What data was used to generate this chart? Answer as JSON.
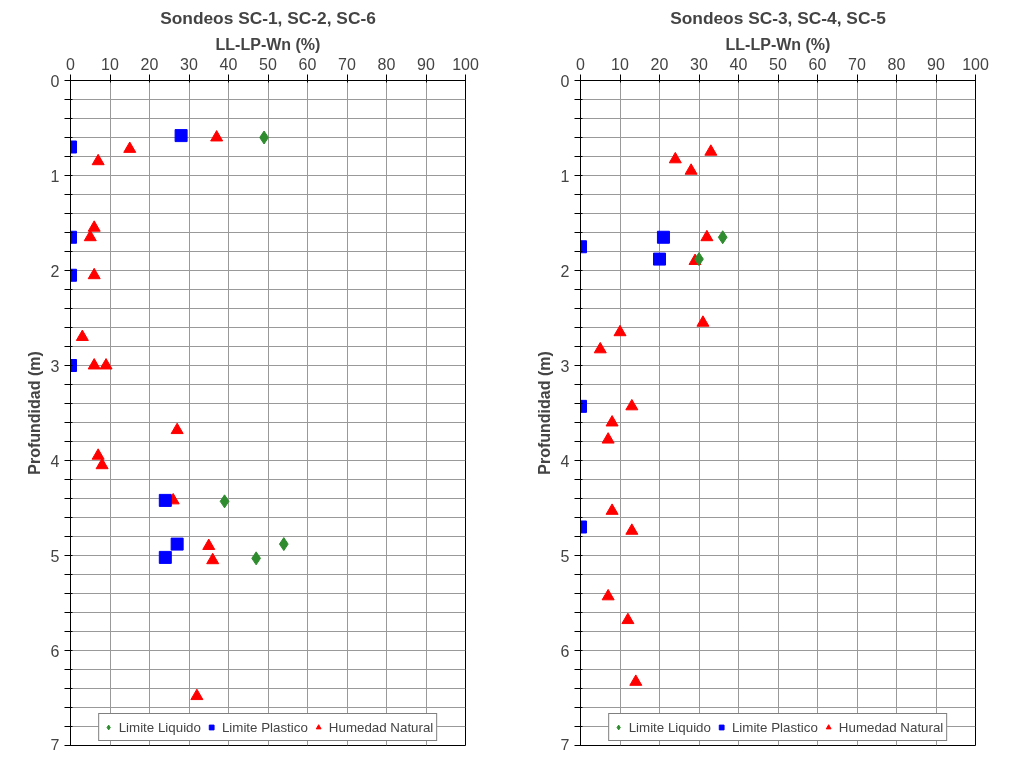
{
  "chart_data": [
    {
      "type": "scatter",
      "title": "Sondeos SC-1, SC-2, SC-6",
      "xlabel": "LL-LP-Wn (%)",
      "ylabel": "Profundidad (m)",
      "xlim": [
        0,
        100
      ],
      "xticks": [
        0,
        10,
        20,
        30,
        40,
        50,
        60,
        70,
        80,
        90,
        100
      ],
      "ylim": [
        7,
        0
      ],
      "yticks": [
        0,
        {
          "value": 0.2,
          "label": null
        },
        {
          "value": 0.4,
          "label": null
        },
        {
          "value": 0.6,
          "label": null
        },
        {
          "value": 0.8,
          "label": null
        },
        1,
        {
          "value": 1.2,
          "label": null
        },
        {
          "value": 1.4,
          "label": null
        },
        {
          "value": 1.6,
          "label": null
        },
        {
          "value": 1.8,
          "label": null
        },
        2,
        {
          "value": 2.2,
          "label": null
        },
        {
          "value": 2.4,
          "label": null
        },
        {
          "value": 2.6,
          "label": null
        },
        {
          "value": 2.8,
          "label": null
        },
        3,
        {
          "value": 3.2,
          "label": null
        },
        {
          "value": 3.4,
          "label": null
        },
        {
          "value": 3.6,
          "label": null
        },
        {
          "value": 3.8,
          "label": null
        },
        4,
        {
          "value": 4.2,
          "label": null
        },
        {
          "value": 4.4,
          "label": null
        },
        {
          "value": 4.6,
          "label": null
        },
        {
          "value": 4.8,
          "label": null
        },
        5,
        {
          "value": 5.2,
          "label": null
        },
        {
          "value": 5.4,
          "label": null
        },
        {
          "value": 5.6,
          "label": null
        },
        {
          "value": 5.8,
          "label": null
        },
        6,
        {
          "value": 6.2,
          "label": null
        },
        {
          "value": 6.4,
          "label": null
        },
        {
          "value": 6.6,
          "label": null
        },
        {
          "value": 6.8,
          "label": null
        },
        7
      ],
      "grid": true,
      "legend": "bottom",
      "series": [
        {
          "name": "Limite Liquido",
          "color": "#2e8b2e",
          "marker": "diamond",
          "x": [
            49,
            39,
            54,
            47
          ],
          "values": [
            0.6,
            4.43,
            4.88,
            5.03
          ]
        },
        {
          "name": "Limite Plastico",
          "color": "#0000ff",
          "marker": "square",
          "x": [
            28,
            0,
            0,
            0,
            0,
            24,
            27,
            24
          ],
          "values": [
            0.58,
            0.7,
            1.65,
            2.05,
            3.0,
            4.42,
            4.88,
            5.02
          ]
        },
        {
          "name": "Humedad Natural",
          "color": "#ff0000",
          "marker": "triangle",
          "x": [
            37,
            15,
            7,
            6,
            5,
            6,
            3,
            6,
            9,
            27,
            7,
            8,
            26,
            35,
            36,
            32
          ],
          "values": [
            0.6,
            0.72,
            0.85,
            1.55,
            1.65,
            2.05,
            2.7,
            3.0,
            3.0,
            3.68,
            3.95,
            4.05,
            4.42,
            4.9,
            5.05,
            6.48
          ]
        }
      ]
    },
    {
      "type": "scatter",
      "title": "Sondeos SC-3, SC-4, SC-5",
      "xlabel": "LL-LP-Wn (%)",
      "ylabel": "Profundidad (m)",
      "xlim": [
        0,
        100
      ],
      "xticks": [
        0,
        10,
        20,
        30,
        40,
        50,
        60,
        70,
        80,
        90,
        100
      ],
      "ylim": [
        7,
        0
      ],
      "yticks": [
        0,
        {
          "value": 0.2,
          "label": null
        },
        {
          "value": 0.4,
          "label": null
        },
        {
          "value": 0.6,
          "label": null
        },
        {
          "value": 0.8,
          "label": null
        },
        1,
        {
          "value": 1.2,
          "label": null
        },
        {
          "value": 1.4,
          "label": null
        },
        {
          "value": 1.6,
          "label": null
        },
        {
          "value": 1.8,
          "label": null
        },
        2,
        {
          "value": 2.2,
          "label": null
        },
        {
          "value": 2.4,
          "label": null
        },
        {
          "value": 2.6,
          "label": null
        },
        {
          "value": 2.8,
          "label": null
        },
        3,
        {
          "value": 3.2,
          "label": null
        },
        {
          "value": 3.4,
          "label": null
        },
        {
          "value": 3.6,
          "label": null
        },
        {
          "value": 3.8,
          "label": null
        },
        4,
        {
          "value": 4.2,
          "label": null
        },
        {
          "value": 4.4,
          "label": null
        },
        {
          "value": 4.6,
          "label": null
        },
        {
          "value": 4.8,
          "label": null
        },
        5,
        {
          "value": 5.2,
          "label": null
        },
        {
          "value": 5.4,
          "label": null
        },
        {
          "value": 5.6,
          "label": null
        },
        {
          "value": 5.8,
          "label": null
        },
        6,
        {
          "value": 6.2,
          "label": null
        },
        {
          "value": 6.4,
          "label": null
        },
        {
          "value": 6.6,
          "label": null
        },
        {
          "value": 6.8,
          "label": null
        },
        7
      ],
      "grid": true,
      "legend": "bottom",
      "series": [
        {
          "name": "Limite Liquido",
          "color": "#2e8b2e",
          "marker": "diamond",
          "x": [
            36,
            30
          ],
          "values": [
            1.65,
            1.88
          ]
        },
        {
          "name": "Limite Plastico",
          "color": "#0000ff",
          "marker": "square",
          "x": [
            0,
            21,
            20,
            0,
            0
          ],
          "values": [
            1.75,
            1.65,
            1.88,
            3.43,
            4.7
          ]
        },
        {
          "name": "Humedad Natural",
          "color": "#ff0000",
          "marker": "triangle",
          "x": [
            24,
            33,
            28,
            32,
            29,
            31,
            10,
            5,
            13,
            8,
            7,
            8,
            13,
            7,
            12,
            14
          ],
          "values": [
            0.83,
            0.75,
            0.95,
            1.65,
            1.9,
            2.55,
            2.65,
            2.83,
            3.43,
            3.6,
            3.78,
            4.53,
            4.74,
            5.43,
            5.68,
            6.33
          ]
        }
      ]
    }
  ]
}
